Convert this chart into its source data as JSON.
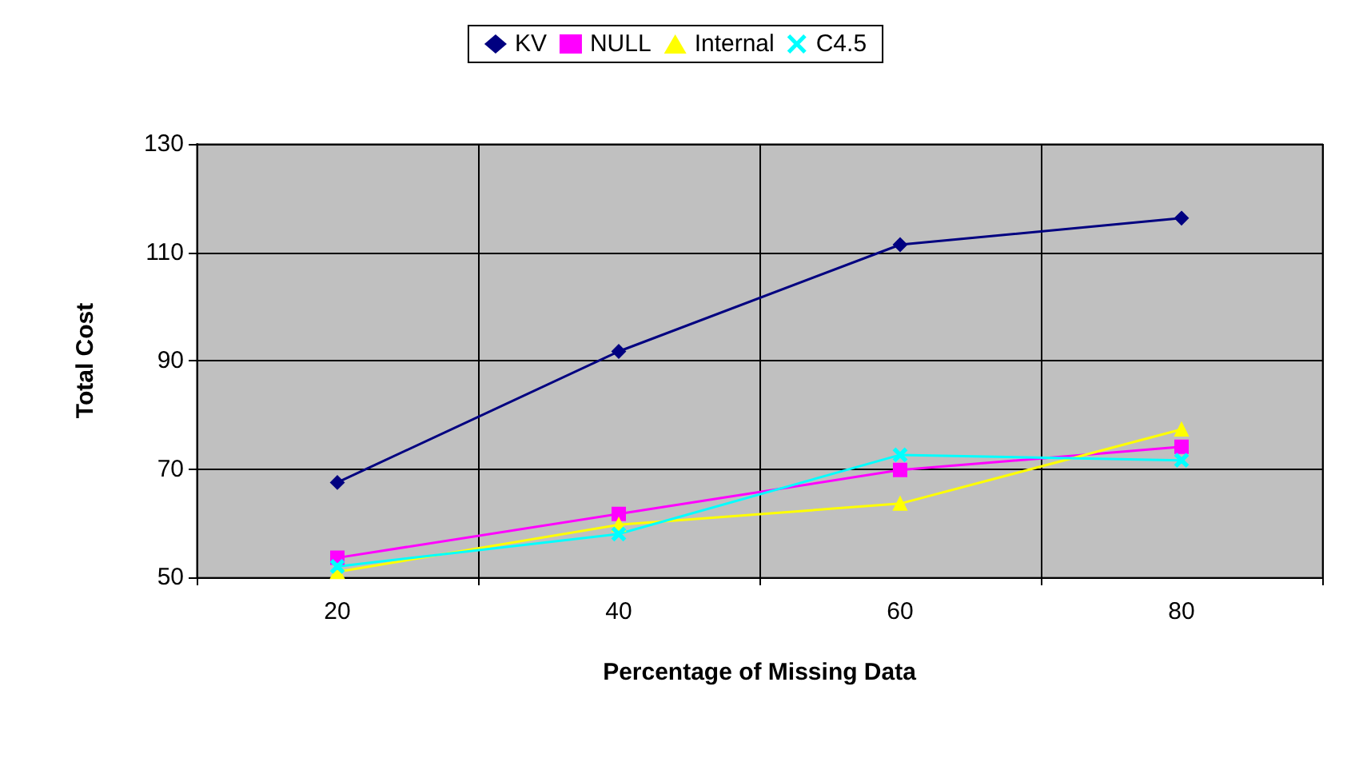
{
  "chart_data": {
    "type": "line",
    "xlabel": "Percentage of Missing Data",
    "ylabel": "Total Cost",
    "categories": [
      "20",
      "40",
      "60",
      "80"
    ],
    "ylim": [
      50,
      130
    ],
    "yticks": [
      50,
      70,
      90,
      110,
      130
    ],
    "grid": true,
    "legend": "top",
    "series": [
      {
        "name": "KV",
        "color": "#000080",
        "marker": "diamond",
        "values": [
          67.5,
          91.7,
          111.4,
          116.3
        ]
      },
      {
        "name": "NULL",
        "color": "#ff00ff",
        "marker": "square",
        "values": [
          53.6,
          61.7,
          69.8,
          74.1
        ]
      },
      {
        "name": "Internal",
        "color": "#ffff00",
        "marker": "triangle",
        "values": [
          51.0,
          59.7,
          63.6,
          77.3
        ]
      },
      {
        "name": "C4.5",
        "color": "#00ffff",
        "marker": "cross",
        "values": [
          52.0,
          58.0,
          72.6,
          71.6
        ]
      }
    ]
  }
}
